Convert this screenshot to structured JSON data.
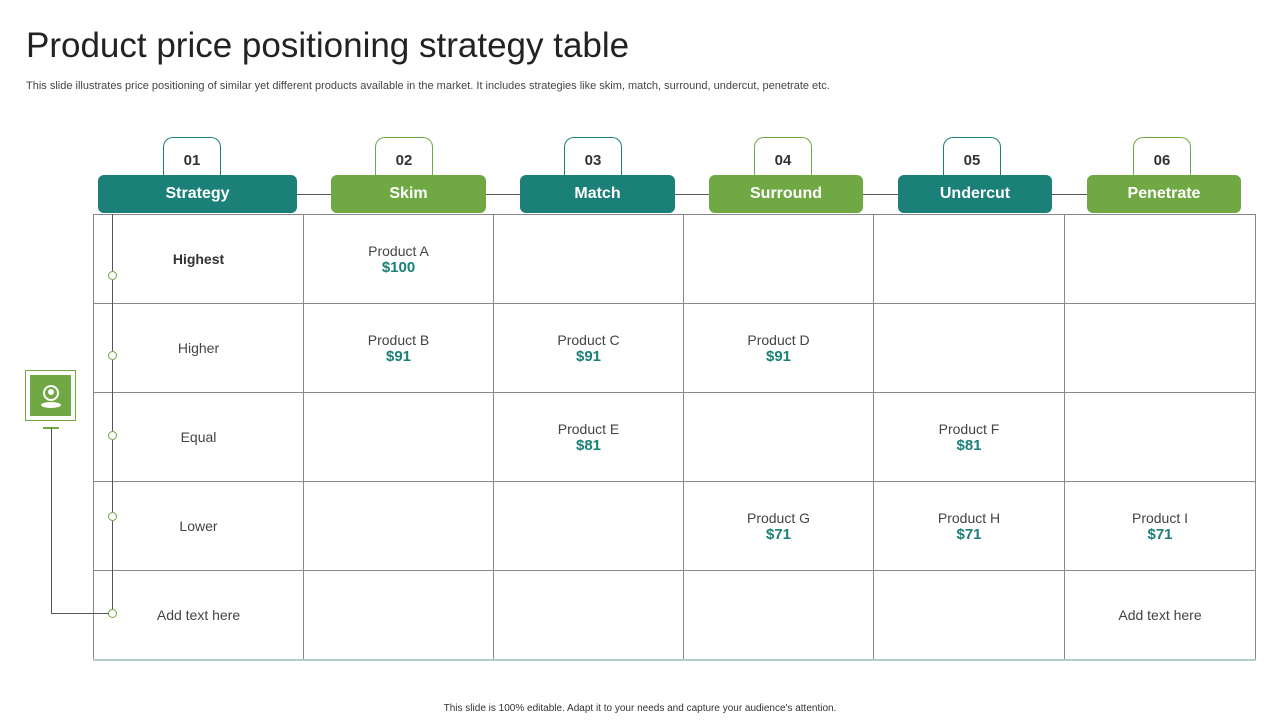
{
  "title": "Product price positioning strategy table",
  "subtitle": "This slide illustrates price positioning of similar yet different products available in the market. It includes strategies like skim, match, surround, undercut, penetrate etc.",
  "footer": "This slide is 100% editable.  Adapt it to your needs and capture your audience's attention.",
  "colors": {
    "teal": "#1b8078",
    "green": "#70a843"
  },
  "columns": [
    {
      "num": "01",
      "label": "Strategy",
      "color": "teal"
    },
    {
      "num": "02",
      "label": "Skim",
      "color": "green"
    },
    {
      "num": "03",
      "label": "Match",
      "color": "teal"
    },
    {
      "num": "04",
      "label": "Surround",
      "color": "green"
    },
    {
      "num": "05",
      "label": "Undercut",
      "color": "teal"
    },
    {
      "num": "06",
      "label": "Penetrate",
      "color": "green"
    }
  ],
  "rows": [
    {
      "label": "Highest",
      "cells": [
        {
          "p": "Product A",
          "v": "$100"
        },
        null,
        null,
        null,
        null
      ]
    },
    {
      "label": "Higher",
      "cells": [
        {
          "p": "Product B",
          "v": "$91"
        },
        {
          "p": "Product C",
          "v": "$91"
        },
        {
          "p": "Product D",
          "v": "$91"
        },
        null,
        null
      ]
    },
    {
      "label": "Equal",
      "cells": [
        null,
        {
          "p": "Product E",
          "v": "$81"
        },
        null,
        {
          "p": "Product F",
          "v": "$81"
        },
        null
      ]
    },
    {
      "label": "Lower",
      "cells": [
        null,
        null,
        {
          "p": "Product G",
          "v": "$71"
        },
        {
          "p": "Product H",
          "v": "$71"
        },
        {
          "p": "Product I",
          "v": "$71"
        }
      ]
    },
    {
      "label": "Add text here",
      "cells": [
        null,
        null,
        null,
        null,
        {
          "p": "Add text here",
          "v": ""
        }
      ]
    }
  ],
  "icon": "user-location-icon"
}
